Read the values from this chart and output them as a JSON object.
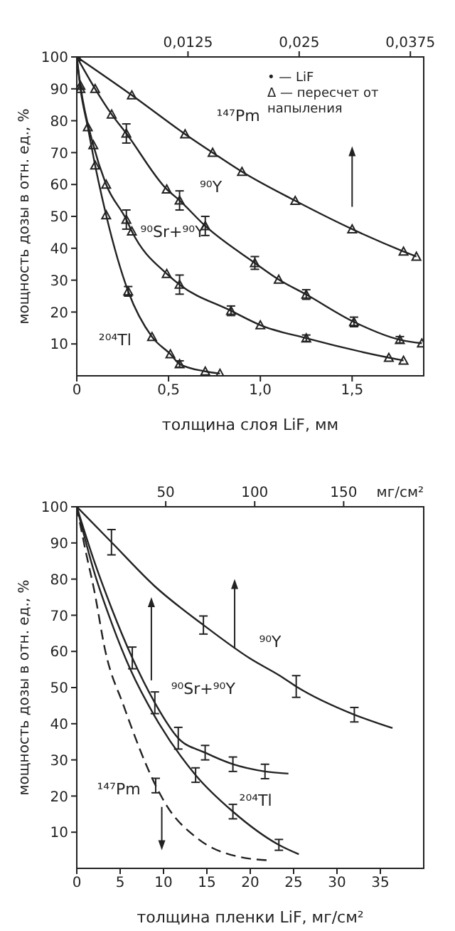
{
  "chart_data": [
    {
      "type": "line",
      "xlabel": "толщина слоя LiF, мм",
      "ylabel": "мощность дозы в отн. ед., %",
      "xlim": [
        0,
        1.89
      ],
      "xticks": [
        0,
        {
          "value": 0.5,
          "label": "0,5"
        },
        {
          "value": 1.0,
          "label": "1,0"
        },
        {
          "value": 1.5,
          "label": "1,5"
        }
      ],
      "x2lim": [
        0,
        0.039
      ],
      "x2ticks": [
        {
          "value": 0.0125,
          "label": "0,0125"
        },
        {
          "value": 0.025,
          "label": "0,025"
        },
        {
          "value": 0.0375,
          "label": "0,0375"
        }
      ],
      "ylim": [
        0,
        100
      ],
      "yticks": [
        10,
        20,
        30,
        40,
        50,
        60,
        70,
        80,
        90,
        100
      ],
      "grid": false,
      "legend": false,
      "marker": "triangle",
      "annotations": [
        "• — LiF",
        "Δ — пересчет от напыления"
      ],
      "series": [
        {
          "name": "¹⁴⁷Pm",
          "color": "#222222",
          "x": [
            0,
            0.3,
            0.59,
            0.74,
            0.9,
            1.19,
            1.5,
            1.78,
            1.85
          ],
          "values": [
            100,
            88,
            75.8,
            70,
            64,
            54.9,
            46,
            39,
            37.4
          ]
        },
        {
          "name": "⁹⁰Y",
          "color": "#222222",
          "x": [
            0,
            0.1,
            0.19,
            0.27,
            0.49,
            0.56,
            0.7,
            0.97,
            1.1,
            1.25,
            1.51,
            1.76,
            1.88
          ],
          "values": [
            100,
            90,
            82,
            76,
            58.5,
            55,
            47,
            35.4,
            30.2,
            25.5,
            16.9,
            11.3,
            10.2
          ],
          "errors": [
            null,
            null,
            null,
            3,
            null,
            3,
            3,
            2,
            null,
            1.5,
            1.5,
            1,
            null
          ]
        },
        {
          "name": "⁹⁰Sr+⁹⁰Y",
          "color": "#222222",
          "x": [
            0,
            0.02,
            0.09,
            0.16,
            0.27,
            0.3,
            0.49,
            0.56,
            0.84,
            1.0,
            1.25,
            1.7,
            1.78
          ],
          "values": [
            100,
            91,
            72.4,
            60,
            49,
            45.3,
            32,
            28.6,
            20.4,
            15.9,
            11.8,
            5.7,
            4.8
          ],
          "errors": [
            null,
            null,
            null,
            null,
            3,
            null,
            null,
            3,
            1.5,
            null,
            1,
            null,
            null
          ]
        },
        {
          "name": "²⁰⁴Tl",
          "color": "#222222",
          "x": [
            0,
            0.02,
            0.06,
            0.1,
            0.16,
            0.28,
            0.41,
            0.51,
            0.56,
            0.7,
            0.78
          ],
          "values": [
            100,
            90,
            78,
            66,
            50.4,
            26.5,
            12.2,
            6.8,
            3.7,
            1.4,
            0.7
          ],
          "errors": [
            null,
            null,
            null,
            null,
            null,
            1.5,
            null,
            null,
            1,
            null,
            null
          ]
        }
      ]
    },
    {
      "type": "line",
      "xlabel": "толщина пленки LiF, мг/см²",
      "ylabel": "мощность дозы в отн. ед., %",
      "x2label": "мг/см²",
      "xlim": [
        0,
        40
      ],
      "xticks": [
        0,
        5,
        10,
        15,
        20,
        25,
        30,
        35
      ],
      "x2lim": [
        0,
        195
      ],
      "x2ticks": [
        50,
        100,
        150
      ],
      "ylim": [
        0,
        100
      ],
      "yticks": [
        10,
        20,
        30,
        40,
        50,
        60,
        70,
        80,
        90,
        100
      ],
      "grid": false,
      "legend": false,
      "marker": "none",
      "series": [
        {
          "name": "⁹⁰Y",
          "color": "#222222",
          "x": [
            0,
            4,
            9,
            14.6,
            20,
            23.6,
            25.3,
            32,
            36.4
          ],
          "values": [
            100,
            90.2,
            78,
            67.3,
            58,
            53,
            50.3,
            42.5,
            38.8
          ],
          "errors": [
            null,
            3.5,
            null,
            2.5,
            null,
            null,
            3,
            2,
            null
          ]
        },
        {
          "name": "⁹⁰Sr+⁹⁰Y",
          "color": "#222222",
          "x": [
            0,
            2,
            4,
            6.4,
            9,
            11.7,
            14.8,
            18,
            21.7,
            24.4
          ],
          "values": [
            100,
            85,
            72,
            58.2,
            45.8,
            36,
            32,
            28.8,
            26.8,
            26.2
          ],
          "errors": [
            null,
            null,
            null,
            3,
            3,
            3,
            2,
            2,
            2,
            null
          ]
        },
        {
          "name": "²⁰⁴Tl",
          "color": "#222222",
          "x": [
            0,
            2,
            4,
            6.2,
            9,
            13.7,
            18,
            23.3,
            25.6
          ],
          "values": [
            100,
            82,
            68,
            54.9,
            42,
            25.8,
            15.7,
            6.5,
            3.9
          ],
          "errors": [
            null,
            null,
            null,
            null,
            null,
            2,
            2,
            1.5,
            null
          ]
        },
        {
          "name": "¹⁴⁷Pm",
          "color": "#222222",
          "line_style": "dashed",
          "x": [
            0,
            1,
            2,
            3.3,
            5.4,
            9.1,
            10.3,
            13.8,
            18.5,
            22.3
          ],
          "values": [
            100,
            88,
            77,
            60,
            45,
            22.9,
            17.6,
            8.5,
            3.3,
            2.2
          ],
          "errors": [
            null,
            null,
            null,
            null,
            null,
            2,
            null,
            null,
            null,
            null
          ]
        }
      ]
    }
  ]
}
